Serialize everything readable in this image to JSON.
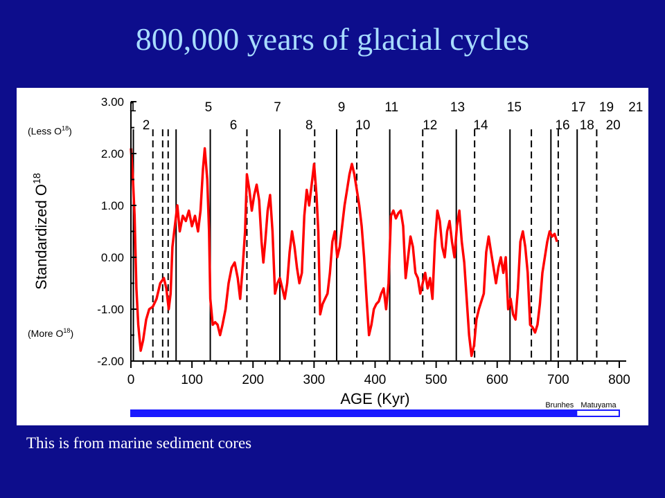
{
  "slide": {
    "title": "800,000 years of glacial cycles",
    "caption": "This is from marine sediment cores",
    "colors": {
      "background": "#0d0d8c",
      "title": "#a8dcff",
      "caption": "#ffffff",
      "series": "#ff0000",
      "brunhes_bar": "#1a1aff"
    }
  },
  "chart_data": {
    "type": "line",
    "title": "",
    "xlabel": "AGE (Kyr)",
    "ylabel": "Standardized O",
    "ylabel_sup": "18",
    "xlim": [
      0,
      800
    ],
    "ylim": [
      -2.0,
      3.0
    ],
    "x_ticks": [
      "0",
      "100",
      "200",
      "300",
      "400",
      "500",
      "600",
      "700",
      "800"
    ],
    "y_ticks": [
      "3.00",
      "2.00",
      "1.00",
      "0.00",
      "-1.00",
      "-2.00"
    ],
    "y_annotations": [
      {
        "text": "(Less O",
        "sup": "18",
        "end": ")",
        "y": 2.45
      },
      {
        "text": "(More O",
        "sup": "18",
        "end": ")",
        "y": -1.45
      }
    ],
    "grid": false,
    "series": [
      {
        "color": "#ff0000",
        "points": [
          [
            0,
            2.1
          ],
          [
            3,
            1.6
          ],
          [
            6,
            0.8
          ],
          [
            9,
            -0.6
          ],
          [
            12,
            -1.3
          ],
          [
            16,
            -1.8
          ],
          [
            20,
            -1.6
          ],
          [
            25,
            -1.2
          ],
          [
            30,
            -1.0
          ],
          [
            36,
            -0.95
          ],
          [
            42,
            -0.8
          ],
          [
            48,
            -0.5
          ],
          [
            54,
            -0.4
          ],
          [
            58,
            -0.6
          ],
          [
            62,
            -1.0
          ],
          [
            65,
            -0.7
          ],
          [
            68,
            0.2
          ],
          [
            72,
            0.6
          ],
          [
            76,
            1.0
          ],
          [
            80,
            0.5
          ],
          [
            85,
            0.8
          ],
          [
            90,
            0.7
          ],
          [
            95,
            0.9
          ],
          [
            100,
            0.6
          ],
          [
            105,
            0.8
          ],
          [
            110,
            0.5
          ],
          [
            114,
            0.9
          ],
          [
            118,
            1.7
          ],
          [
            121,
            2.1
          ],
          [
            125,
            1.5
          ],
          [
            128,
            0.5
          ],
          [
            130,
            -0.8
          ],
          [
            134,
            -1.3
          ],
          [
            138,
            -1.25
          ],
          [
            142,
            -1.3
          ],
          [
            146,
            -1.5
          ],
          [
            150,
            -1.3
          ],
          [
            155,
            -1.0
          ],
          [
            160,
            -0.5
          ],
          [
            165,
            -0.2
          ],
          [
            170,
            -0.1
          ],
          [
            175,
            -0.4
          ],
          [
            179,
            -0.8
          ],
          [
            183,
            -0.2
          ],
          [
            187,
            0.5
          ],
          [
            190,
            1.6
          ],
          [
            194,
            1.3
          ],
          [
            198,
            0.9
          ],
          [
            202,
            1.2
          ],
          [
            206,
            1.4
          ],
          [
            210,
            1.1
          ],
          [
            214,
            0.3
          ],
          [
            217,
            -0.1
          ],
          [
            220,
            0.3
          ],
          [
            224,
            0.9
          ],
          [
            228,
            1.2
          ],
          [
            232,
            0.5
          ],
          [
            236,
            -0.7
          ],
          [
            240,
            -0.5
          ],
          [
            244,
            -0.4
          ],
          [
            248,
            -0.6
          ],
          [
            252,
            -0.8
          ],
          [
            256,
            -0.5
          ],
          [
            260,
            0.1
          ],
          [
            264,
            0.5
          ],
          [
            268,
            0.2
          ],
          [
            272,
            -0.2
          ],
          [
            276,
            -0.5
          ],
          [
            280,
            -0.3
          ],
          [
            284,
            0.8
          ],
          [
            288,
            1.3
          ],
          [
            292,
            1.0
          ],
          [
            296,
            1.4
          ],
          [
            300,
            1.8
          ],
          [
            304,
            1.2
          ],
          [
            307,
            0.5
          ],
          [
            310,
            -1.1
          ],
          [
            314,
            -0.9
          ],
          [
            318,
            -0.8
          ],
          [
            322,
            -0.7
          ],
          [
            326,
            -0.3
          ],
          [
            330,
            0.3
          ],
          [
            334,
            0.5
          ],
          [
            338,
            0.0
          ],
          [
            342,
            0.2
          ],
          [
            346,
            0.6
          ],
          [
            350,
            1.0
          ],
          [
            354,
            1.3
          ],
          [
            358,
            1.6
          ],
          [
            362,
            1.8
          ],
          [
            366,
            1.6
          ],
          [
            370,
            1.3
          ],
          [
            374,
            1.0
          ],
          [
            378,
            0.6
          ],
          [
            382,
            0.0
          ],
          [
            386,
            -0.8
          ],
          [
            390,
            -1.5
          ],
          [
            394,
            -1.3
          ],
          [
            398,
            -1.0
          ],
          [
            402,
            -0.9
          ],
          [
            406,
            -0.85
          ],
          [
            410,
            -0.7
          ],
          [
            414,
            -0.6
          ],
          [
            418,
            -1.0
          ],
          [
            422,
            -0.5
          ],
          [
            426,
            0.8
          ],
          [
            430,
            0.9
          ],
          [
            434,
            0.75
          ],
          [
            438,
            0.85
          ],
          [
            442,
            0.9
          ],
          [
            446,
            0.6
          ],
          [
            450,
            -0.4
          ],
          [
            454,
            0.0
          ],
          [
            458,
            0.4
          ],
          [
            462,
            0.2
          ],
          [
            466,
            -0.3
          ],
          [
            470,
            -0.4
          ],
          [
            474,
            -0.7
          ],
          [
            478,
            -0.5
          ],
          [
            482,
            -0.3
          ],
          [
            486,
            -0.6
          ],
          [
            490,
            -0.4
          ],
          [
            494,
            -0.8
          ],
          [
            498,
            0.3
          ],
          [
            502,
            0.9
          ],
          [
            506,
            0.7
          ],
          [
            510,
            0.2
          ],
          [
            514,
            0.0
          ],
          [
            518,
            0.5
          ],
          [
            522,
            0.7
          ],
          [
            526,
            0.3
          ],
          [
            530,
            0.0
          ],
          [
            534,
            0.6
          ],
          [
            538,
            0.9
          ],
          [
            542,
            0.3
          ],
          [
            546,
            -0.1
          ],
          [
            550,
            -0.8
          ],
          [
            554,
            -1.5
          ],
          [
            558,
            -1.9
          ],
          [
            562,
            -1.7
          ],
          [
            566,
            -1.2
          ],
          [
            570,
            -1.0
          ],
          [
            574,
            -0.85
          ],
          [
            578,
            -0.7
          ],
          [
            582,
            0.1
          ],
          [
            586,
            0.4
          ],
          [
            590,
            0.1
          ],
          [
            594,
            -0.2
          ],
          [
            598,
            -0.5
          ],
          [
            602,
            -0.2
          ],
          [
            606,
            0.0
          ],
          [
            610,
            -0.3
          ],
          [
            614,
            0.0
          ],
          [
            618,
            -1.0
          ],
          [
            622,
            -0.8
          ],
          [
            626,
            -1.1
          ],
          [
            630,
            -1.2
          ],
          [
            634,
            -0.6
          ],
          [
            638,
            0.3
          ],
          [
            642,
            0.5
          ],
          [
            646,
            0.2
          ],
          [
            650,
            -0.3
          ],
          [
            654,
            -1.3
          ],
          [
            658,
            -1.35
          ],
          [
            662,
            -1.45
          ],
          [
            666,
            -1.3
          ],
          [
            670,
            -0.9
          ],
          [
            674,
            -0.3
          ],
          [
            678,
            0.0
          ],
          [
            682,
            0.3
          ],
          [
            686,
            0.5
          ],
          [
            690,
            0.4
          ],
          [
            694,
            0.45
          ],
          [
            698,
            0.3
          ]
        ]
      }
    ],
    "stage_labels": [
      {
        "text": "1",
        "x": 3,
        "row": "top"
      },
      {
        "text": "5",
        "x": 127,
        "row": "top"
      },
      {
        "text": "7",
        "x": 240,
        "row": "top"
      },
      {
        "text": "9",
        "x": 345,
        "row": "top"
      },
      {
        "text": "11",
        "x": 427,
        "row": "top"
      },
      {
        "text": "13",
        "x": 535,
        "row": "top"
      },
      {
        "text": "15",
        "x": 628,
        "row": "top"
      },
      {
        "text": "17",
        "x": 733,
        "row": "top"
      },
      {
        "text": "19",
        "x": 779,
        "row": "top"
      },
      {
        "text": "21",
        "x": 827,
        "row": "top"
      },
      {
        "text": "2",
        "x": 25,
        "row": "bottom"
      },
      {
        "text": "6",
        "x": 168,
        "row": "bottom"
      },
      {
        "text": "8",
        "x": 292,
        "row": "bottom"
      },
      {
        "text": "10",
        "x": 380,
        "row": "bottom"
      },
      {
        "text": "12",
        "x": 490,
        "row": "bottom"
      },
      {
        "text": "14",
        "x": 573,
        "row": "bottom"
      },
      {
        "text": "16",
        "x": 707,
        "row": "bottom"
      },
      {
        "text": "18",
        "x": 747,
        "row": "bottom"
      },
      {
        "text": "20",
        "x": 790,
        "row": "bottom"
      }
    ],
    "boundary_lines": [
      {
        "x": 4,
        "style": "solid"
      },
      {
        "x": 36,
        "style": "dashed"
      },
      {
        "x": 52,
        "style": "dashed"
      },
      {
        "x": 61,
        "style": "dashed"
      },
      {
        "x": 74,
        "style": "solid"
      },
      {
        "x": 130,
        "style": "solid"
      },
      {
        "x": 190,
        "style": "dashed"
      },
      {
        "x": 244,
        "style": "solid"
      },
      {
        "x": 301,
        "style": "dashed"
      },
      {
        "x": 337,
        "style": "solid"
      },
      {
        "x": 370,
        "style": "dashed"
      },
      {
        "x": 424,
        "style": "solid"
      },
      {
        "x": 478,
        "style": "dashed"
      },
      {
        "x": 533,
        "style": "solid"
      },
      {
        "x": 563,
        "style": "dashed"
      },
      {
        "x": 621,
        "style": "solid"
      },
      {
        "x": 656,
        "style": "dashed"
      },
      {
        "x": 688,
        "style": "solid"
      },
      {
        "x": 700,
        "style": "dashed"
      },
      {
        "x": 731,
        "style": "solid"
      },
      {
        "x": 763,
        "style": "dashed"
      }
    ],
    "polarity_bar": [
      {
        "label": "Brunhes",
        "from": 0,
        "to": 730,
        "fill": "#1a1aff"
      },
      {
        "label": "Matuyama",
        "from": 730,
        "to": 800,
        "fill": "#ffffff"
      }
    ]
  }
}
